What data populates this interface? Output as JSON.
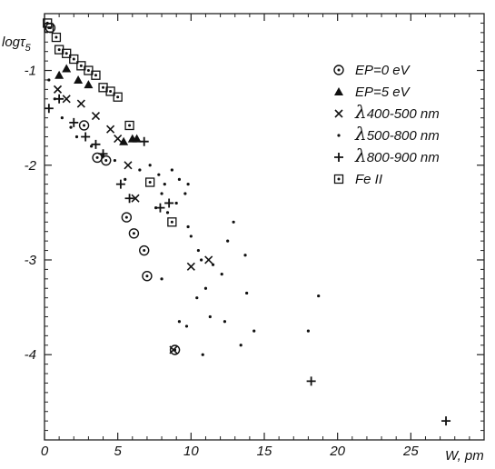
{
  "chart_data": {
    "type": "scatter",
    "title": "",
    "xlabel": "W, pm",
    "ylabel": "logτ",
    "ylabel_sub": "5",
    "xlim": [
      0,
      30
    ],
    "ylim": [
      -4.9,
      -0.4
    ],
    "x_ticks": [
      0,
      5,
      10,
      15,
      20,
      25
    ],
    "x_tick_labels": [
      "0",
      "5",
      "10",
      "15",
      "20",
      "25"
    ],
    "y_ticks": [
      -1,
      -2,
      -3,
      -4
    ],
    "y_tick_labels": [
      "-1",
      "-2",
      "-3",
      "-4"
    ],
    "grid": false,
    "legend_position": "top-right",
    "series": [
      {
        "name": "EP=0 eV",
        "marker": "circle-dot",
        "points": [
          [
            0.4,
            -0.55
          ],
          [
            2.7,
            -1.58
          ],
          [
            3.6,
            -1.92
          ],
          [
            4.2,
            -1.95
          ],
          [
            5.6,
            -2.55
          ],
          [
            6.1,
            -2.72
          ],
          [
            6.8,
            -2.9
          ],
          [
            7.0,
            -3.17
          ],
          [
            8.9,
            -3.95
          ]
        ]
      },
      {
        "name": "EP=5 eV",
        "marker": "triangle",
        "points": [
          [
            1.0,
            -1.05
          ],
          [
            1.5,
            -0.98
          ],
          [
            2.3,
            -1.1
          ],
          [
            3.0,
            -1.15
          ],
          [
            5.4,
            -1.75
          ],
          [
            6.0,
            -1.72
          ],
          [
            6.3,
            -1.72
          ]
        ]
      },
      {
        "name": "λ400-500 nm",
        "label_lambda": "λ",
        "label_range": "400-500 nm",
        "marker": "x",
        "points": [
          [
            0.9,
            -1.2
          ],
          [
            1.5,
            -1.3
          ],
          [
            2.5,
            -1.35
          ],
          [
            3.5,
            -1.48
          ],
          [
            4.5,
            -1.62
          ],
          [
            5.0,
            -1.72
          ],
          [
            5.7,
            -2.0
          ],
          [
            6.2,
            -2.35
          ],
          [
            8.8,
            -3.95
          ],
          [
            10.0,
            -3.07
          ],
          [
            11.2,
            -3.0
          ]
        ]
      },
      {
        "name": "λ500-800 nm",
        "label_lambda": "λ",
        "label_range": "500-800 nm",
        "marker": "dot",
        "points": [
          [
            0.3,
            -1.1
          ],
          [
            0.7,
            -1.3
          ],
          [
            1.2,
            -1.5
          ],
          [
            1.8,
            -1.6
          ],
          [
            2.2,
            -1.7
          ],
          [
            3.2,
            -1.8
          ],
          [
            4.0,
            -1.9
          ],
          [
            4.8,
            -1.95
          ],
          [
            5.5,
            -2.15
          ],
          [
            6.5,
            -2.05
          ],
          [
            7.2,
            -2.0
          ],
          [
            7.8,
            -2.1
          ],
          [
            8.2,
            -2.2
          ],
          [
            8.7,
            -2.05
          ],
          [
            9.2,
            -2.15
          ],
          [
            9.6,
            -2.3
          ],
          [
            9.8,
            -2.2
          ],
          [
            8.0,
            -2.3
          ],
          [
            7.6,
            -2.45
          ],
          [
            8.4,
            -2.5
          ],
          [
            9.0,
            -2.4
          ],
          [
            9.8,
            -2.65
          ],
          [
            10.0,
            -2.75
          ],
          [
            10.5,
            -2.9
          ],
          [
            11.5,
            -3.05
          ],
          [
            11.0,
            -3.3
          ],
          [
            12.1,
            -3.15
          ],
          [
            12.5,
            -2.8
          ],
          [
            12.9,
            -2.6
          ],
          [
            13.7,
            -2.95
          ],
          [
            13.8,
            -3.35
          ],
          [
            10.7,
            -3.0
          ],
          [
            10.4,
            -3.4
          ],
          [
            9.2,
            -3.65
          ],
          [
            9.7,
            -3.7
          ],
          [
            10.8,
            -4.0
          ],
          [
            11.3,
            -3.6
          ],
          [
            12.3,
            -3.65
          ],
          [
            13.4,
            -3.9
          ],
          [
            14.3,
            -3.75
          ],
          [
            18.0,
            -3.75
          ],
          [
            18.7,
            -3.38
          ],
          [
            8.0,
            -3.2
          ]
        ]
      },
      {
        "name": "λ800-900 nm",
        "label_lambda": "λ",
        "label_range": "800-900 nm",
        "marker": "plus",
        "points": [
          [
            0.3,
            -1.4
          ],
          [
            1.0,
            -1.3
          ],
          [
            2.0,
            -1.55
          ],
          [
            2.8,
            -1.7
          ],
          [
            3.5,
            -1.78
          ],
          [
            4.0,
            -1.88
          ],
          [
            5.2,
            -2.2
          ],
          [
            5.8,
            -2.35
          ],
          [
            6.8,
            -1.75
          ],
          [
            7.9,
            -2.45
          ],
          [
            8.5,
            -2.4
          ],
          [
            18.2,
            -4.28
          ],
          [
            27.4,
            -4.7
          ]
        ]
      },
      {
        "name": "Fe II",
        "marker": "square-dot",
        "points": [
          [
            0.2,
            -0.5
          ],
          [
            0.3,
            -0.55
          ],
          [
            0.8,
            -0.65
          ],
          [
            1.0,
            -0.78
          ],
          [
            1.5,
            -0.82
          ],
          [
            2.0,
            -0.88
          ],
          [
            2.5,
            -0.95
          ],
          [
            3.0,
            -1.0
          ],
          [
            3.5,
            -1.05
          ],
          [
            4.0,
            -1.18
          ],
          [
            4.5,
            -1.22
          ],
          [
            5.0,
            -1.28
          ],
          [
            5.8,
            -1.58
          ],
          [
            7.2,
            -2.18
          ],
          [
            8.7,
            -2.6
          ]
        ]
      }
    ]
  }
}
